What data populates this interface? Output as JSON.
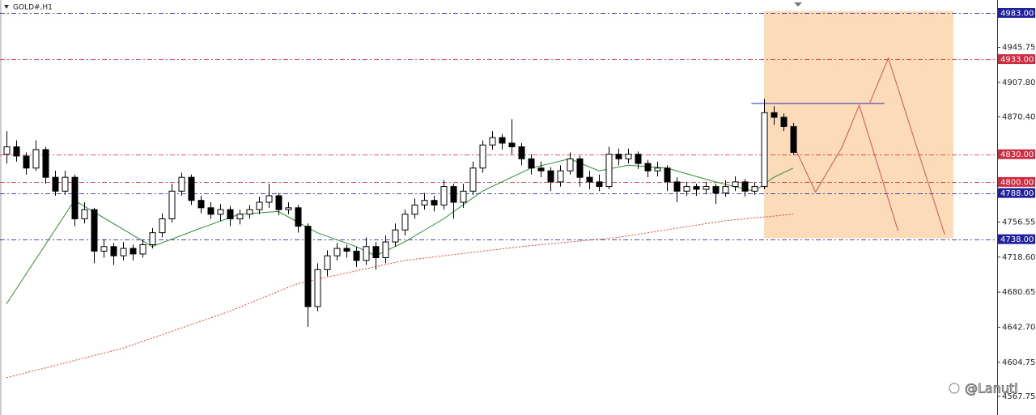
{
  "chart_data": {
    "type": "candlestick",
    "title": "GOLD#,H1",
    "watermark": "@Lanuti",
    "up_color": "#ffffff",
    "down_color": "#000000",
    "xlim": [
      -0.67,
      102
    ],
    "ylim": [
      4547.6,
      4997
    ],
    "yticks": [
      {
        "value": 4945.75,
        "label": "4945.75"
      },
      {
        "value": 4907.8,
        "label": "4907.80"
      },
      {
        "value": 4870.4,
        "label": "4870.40"
      },
      {
        "value": 4756.55,
        "label": "4756.55"
      },
      {
        "value": 4718.6,
        "label": "4718.60"
      },
      {
        "value": 4680.65,
        "label": "4680.65"
      },
      {
        "value": 4642.7,
        "label": "4642.70"
      },
      {
        "value": 4604.75,
        "label": "4604.75"
      },
      {
        "value": 4567.75,
        "label": "4567.75"
      }
    ],
    "levels": [
      {
        "value": 4983,
        "label": "4983.00",
        "color": "#1f1fa0"
      },
      {
        "value": 4933,
        "label": "4933.00",
        "color": "#d02a40"
      },
      {
        "value": 4830,
        "label": "4830.00",
        "color": "#d02a40"
      },
      {
        "value": 4800,
        "label": "4800.00",
        "color": "#d02a40"
      },
      {
        "value": 4788,
        "label": "4788.00",
        "color": "#1f1fa0"
      },
      {
        "value": 4738,
        "label": "4738.00",
        "color": "#1f1fa0"
      }
    ],
    "candles": [
      [
        4830,
        4855,
        4820,
        4838
      ],
      [
        4838,
        4845,
        4822,
        4828
      ],
      [
        4828,
        4832,
        4808,
        4815
      ],
      [
        4815,
        4845,
        4812,
        4835
      ],
      [
        4835,
        4838,
        4798,
        4805
      ],
      [
        4805,
        4812,
        4785,
        4790
      ],
      [
        4790,
        4812,
        4786,
        4805
      ],
      [
        4805,
        4808,
        4752,
        4760
      ],
      [
        4760,
        4778,
        4755,
        4770
      ],
      [
        4770,
        4772,
        4712,
        4725
      ],
      [
        4725,
        4738,
        4718,
        4730
      ],
      [
        4730,
        4734,
        4710,
        4720
      ],
      [
        4720,
        4735,
        4715,
        4728
      ],
      [
        4728,
        4732,
        4715,
        4722
      ],
      [
        4722,
        4738,
        4718,
        4732
      ],
      [
        4732,
        4750,
        4728,
        4745
      ],
      [
        4745,
        4766,
        4740,
        4760
      ],
      [
        4760,
        4798,
        4756,
        4790
      ],
      [
        4790,
        4810,
        4785,
        4805
      ],
      [
        4805,
        4808,
        4775,
        4780
      ],
      [
        4780,
        4785,
        4766,
        4772
      ],
      [
        4772,
        4778,
        4760,
        4765
      ],
      [
        4765,
        4776,
        4758,
        4770
      ],
      [
        4770,
        4774,
        4752,
        4760
      ],
      [
        4760,
        4770,
        4754,
        4765
      ],
      [
        4765,
        4775,
        4760,
        4770
      ],
      [
        4770,
        4784,
        4765,
        4778
      ],
      [
        4778,
        4798,
        4772,
        4785
      ],
      [
        4785,
        4788,
        4764,
        4770
      ],
      [
        4770,
        4778,
        4765,
        4772
      ],
      [
        4772,
        4775,
        4745,
        4752
      ],
      [
        4752,
        4755,
        4643,
        4665
      ],
      [
        4665,
        4712,
        4660,
        4705
      ],
      [
        4705,
        4726,
        4698,
        4720
      ],
      [
        4720,
        4734,
        4715,
        4728
      ],
      [
        4728,
        4732,
        4718,
        4725
      ],
      [
        4725,
        4730,
        4708,
        4715
      ],
      [
        4715,
        4740,
        4710,
        4730
      ],
      [
        4730,
        4735,
        4705,
        4718
      ],
      [
        4718,
        4742,
        4712,
        4735
      ],
      [
        4735,
        4755,
        4730,
        4748
      ],
      [
        4748,
        4770,
        4742,
        4765
      ],
      [
        4765,
        4782,
        4760,
        4775
      ],
      [
        4775,
        4788,
        4770,
        4780
      ],
      [
        4780,
        4785,
        4768,
        4775
      ],
      [
        4775,
        4802,
        4770,
        4795
      ],
      [
        4795,
        4798,
        4760,
        4778
      ],
      [
        4778,
        4798,
        4772,
        4790
      ],
      [
        4790,
        4822,
        4786,
        4815
      ],
      [
        4815,
        4845,
        4810,
        4840
      ],
      [
        4840,
        4855,
        4835,
        4848
      ],
      [
        4848,
        4852,
        4835,
        4842
      ],
      [
        4842,
        4868,
        4830,
        4838
      ],
      [
        4838,
        4842,
        4818,
        4825
      ],
      [
        4825,
        4830,
        4808,
        4815
      ],
      [
        4815,
        4822,
        4805,
        4812
      ],
      [
        4812,
        4816,
        4790,
        4800
      ],
      [
        4800,
        4818,
        4795,
        4812
      ],
      [
        4812,
        4832,
        4808,
        4825
      ],
      [
        4825,
        4828,
        4795,
        4805
      ],
      [
        4805,
        4812,
        4792,
        4800
      ],
      [
        4800,
        4808,
        4790,
        4795
      ],
      [
        4795,
        4838,
        4792,
        4830
      ],
      [
        4830,
        4836,
        4818,
        4825
      ],
      [
        4825,
        4836,
        4820,
        4830
      ],
      [
        4830,
        4833,
        4814,
        4820
      ],
      [
        4820,
        4824,
        4805,
        4812
      ],
      [
        4812,
        4822,
        4806,
        4815
      ],
      [
        4815,
        4818,
        4790,
        4800
      ],
      [
        4800,
        4805,
        4778,
        4790
      ],
      [
        4790,
        4800,
        4785,
        4795
      ],
      [
        4795,
        4798,
        4785,
        4792
      ],
      [
        4792,
        4800,
        4787,
        4795
      ],
      [
        4795,
        4798,
        4776,
        4788
      ],
      [
        4788,
        4802,
        4784,
        4795
      ],
      [
        4795,
        4806,
        4790,
        4800
      ],
      [
        4800,
        4803,
        4784,
        4790
      ],
      [
        4790,
        4800,
        4786,
        4795
      ],
      [
        4795,
        4890,
        4792,
        4875
      ],
      [
        4875,
        4882,
        4862,
        4870
      ],
      [
        4870,
        4874,
        4855,
        4860
      ],
      [
        4860,
        4864,
        4830,
        4832
      ]
    ],
    "moving_averages": [
      {
        "color": "#2e8b3a",
        "dashed": false,
        "x": [
          0,
          7,
          15,
          20,
          24,
          28,
          32,
          36,
          38,
          41,
          45,
          49,
          54,
          58,
          61,
          64,
          68,
          73,
          77,
          79,
          81
        ],
        "values": [
          4668,
          4780,
          4730,
          4750,
          4765,
          4768,
          4745,
          4730,
          4720,
          4735,
          4760,
          4790,
          4815,
          4825,
          4812,
          4818,
          4815,
          4800,
          4790,
          4805,
          4815
        ]
      },
      {
        "color": "#e0463a",
        "dashed": true,
        "x": [
          0,
          12,
          23,
          30,
          41,
          53,
          63,
          74,
          81
        ],
        "values": [
          4588,
          4620,
          4660,
          4690,
          4715,
          4730,
          4740,
          4758,
          4765
        ]
      }
    ],
    "zone": {
      "x": [
        78,
        97.5
      ],
      "y": [
        4739,
        4985
      ],
      "color": "#fcdcb8"
    },
    "trendlines": [
      {
        "color": "#2b2bb8",
        "x": [
          76.7,
          90.4
        ],
        "values": [
          4885,
          4885
        ]
      },
      {
        "color": "#d05060",
        "x": [
          81.4,
          83.3,
          86,
          87.8,
          91.8
        ],
        "values": [
          4832,
          4789,
          4837,
          4883,
          4747
        ]
      },
      {
        "color": "#d05060",
        "x": [
          88.9,
          90.8,
          96.6
        ],
        "values": [
          4886,
          4934,
          4743
        ]
      }
    ]
  }
}
